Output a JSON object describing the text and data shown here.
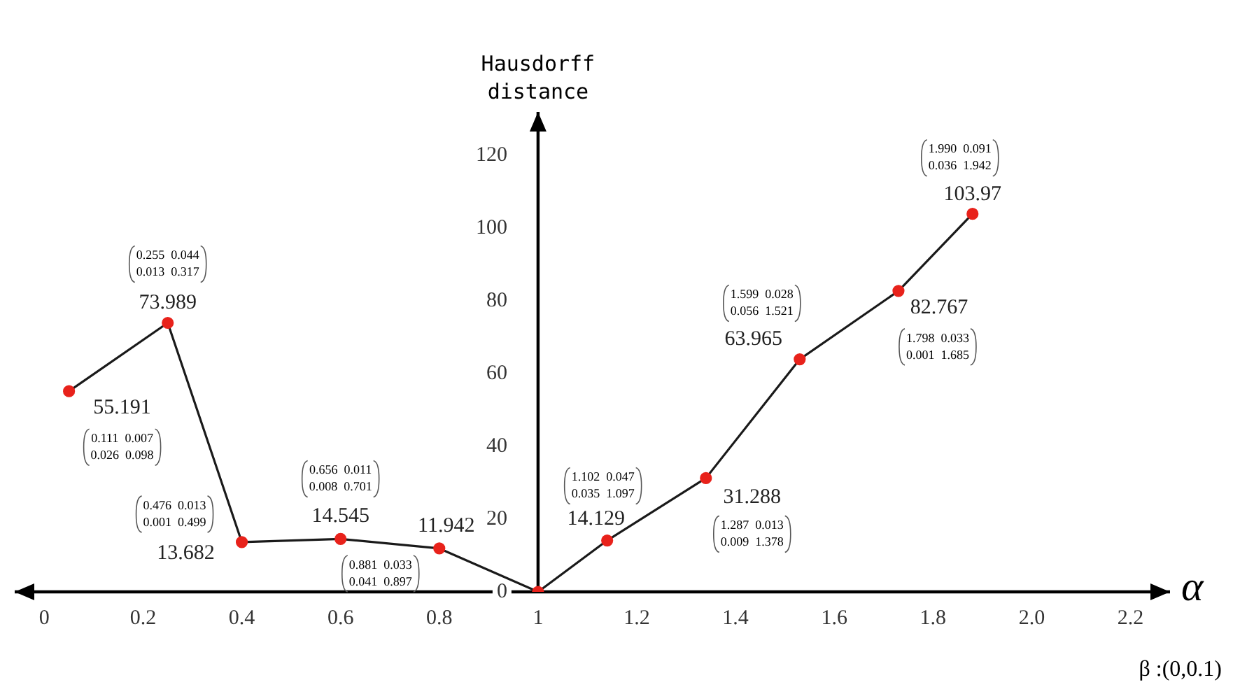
{
  "chart_data": {
    "type": "line",
    "ylabel": "Hausdorff distance",
    "xlabel": "α",
    "x": [
      0.05,
      0.25,
      0.4,
      0.6,
      0.8,
      1,
      1.14,
      1.34,
      1.53,
      1.73,
      1.88
    ],
    "series": [
      {
        "color": "#1a1a1a",
        "colors": [
          "#e8221b",
          "#e8221b",
          "#e8221b",
          "#e8221b",
          "#e8221b",
          "#e8221b",
          "#e8221b",
          "#e8221b",
          "#e8221b",
          "#e8221b",
          "#e8221b"
        ],
        "values": [
          55.191,
          73.989,
          13.682,
          14.545,
          11.942,
          0,
          14.129,
          31.288,
          63.965,
          82.767,
          103.97
        ],
        "value_labels": [
          "55.191",
          "73.989",
          "13.682",
          "14.545",
          "11.942",
          null,
          "14.129",
          "31.288",
          "63.965",
          "82.767",
          "103.97"
        ]
      }
    ],
    "xlim": [
      -0.06,
      2.28
    ],
    "ylim": [
      0,
      132
    ],
    "xticks": [
      0,
      0.2,
      0.4,
      0.6,
      0.8,
      1,
      1.2,
      1.4,
      1.6,
      1.8,
      {
        "value": 2,
        "label": "2.0"
      },
      2.2
    ],
    "yticks": [
      0,
      20,
      40,
      60,
      80,
      100,
      120
    ],
    "marker": "circle",
    "grid": false,
    "legend": false,
    "annotations": [
      "0.111  0.007\n0.026  0.098",
      "0.255  0.044\n0.013  0.317",
      "0.476  0.013\n0.001  0.499",
      "0.656  0.011\n0.008  0.701",
      "0.881  0.033\n0.041  0.897",
      "1.102  0.047\n0.035  1.097",
      "1.287  0.013\n0.009  1.378",
      "1.599  0.028\n0.056  1.521",
      "1.798  0.033\n0.001  1.685",
      "1.990  0.091\n0.036  1.942",
      "β :(0,0.1)"
    ]
  }
}
